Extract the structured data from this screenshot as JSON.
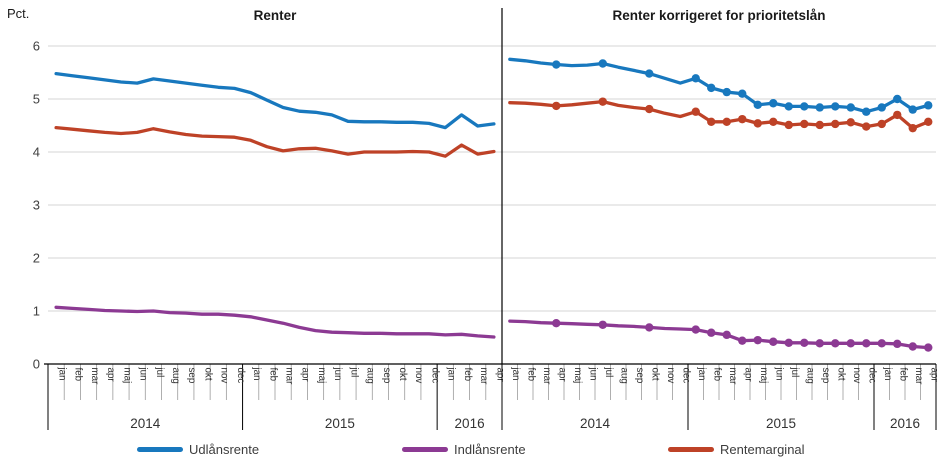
{
  "y_unit_label": "Pct.",
  "legend": [
    {
      "label": "Udlånsrente",
      "color": "#1878BE"
    },
    {
      "label": "Indlånsrente",
      "color": "#8C3A93"
    },
    {
      "label": "Rentemarginal",
      "color": "#BE4227"
    }
  ],
  "axis": {
    "y_ticks": [
      0,
      1,
      2,
      3,
      4,
      5,
      6
    ],
    "gridline_color": "#D6D6D6",
    "axis_color": "#000000",
    "tick_color": "#9B9B9B",
    "label_color": "#404040"
  },
  "chart_data": [
    {
      "type": "line",
      "title": "Renter",
      "ylim": [
        0,
        6
      ],
      "y_tick_step": 1,
      "grid": true,
      "markers": false,
      "x_months": [
        "jan",
        "feb",
        "mar",
        "apr",
        "maj",
        "jun",
        "jul",
        "aug",
        "sep",
        "okt",
        "nov",
        "dec",
        "jan",
        "feb",
        "mar",
        "apr",
        "maj",
        "jun",
        "jul",
        "aug",
        "sep",
        "okt",
        "nov",
        "dec",
        "jan",
        "feb",
        "mar",
        "apr"
      ],
      "year_groups": [
        {
          "label": "2014",
          "months": 12
        },
        {
          "label": "2015",
          "months": 12
        },
        {
          "label": "2016",
          "months": 4
        }
      ],
      "series": [
        {
          "name": "Udlånsrente",
          "color": "#1878BE",
          "values": [
            5.48,
            5.44,
            5.4,
            5.36,
            5.32,
            5.3,
            5.38,
            5.34,
            5.3,
            5.26,
            5.22,
            5.2,
            5.12,
            4.98,
            4.84,
            4.77,
            4.75,
            4.7,
            4.58,
            4.57,
            4.57,
            4.56,
            4.56,
            4.54,
            4.46,
            4.7,
            4.49,
            4.53
          ]
        },
        {
          "name": "Indlånsrente",
          "color": "#8C3A93",
          "values": [
            1.07,
            1.05,
            1.03,
            1.01,
            1.0,
            0.99,
            1.0,
            0.97,
            0.96,
            0.94,
            0.94,
            0.92,
            0.89,
            0.83,
            0.77,
            0.69,
            0.63,
            0.6,
            0.59,
            0.58,
            0.58,
            0.57,
            0.57,
            0.57,
            0.55,
            0.56,
            0.53,
            0.51
          ]
        },
        {
          "name": "Rentemarginal",
          "color": "#BE4227",
          "values": [
            4.46,
            4.43,
            4.4,
            4.37,
            4.35,
            4.37,
            4.44,
            4.38,
            4.33,
            4.3,
            4.29,
            4.28,
            4.22,
            4.1,
            4.02,
            4.06,
            4.07,
            4.02,
            3.96,
            4.0,
            4.0,
            4.0,
            4.01,
            4.0,
            3.92,
            4.13,
            3.96,
            4.01
          ]
        }
      ]
    },
    {
      "type": "line",
      "title": "Renter korrigeret for prioritetslån",
      "ylim": [
        0,
        6
      ],
      "y_tick_step": 1,
      "grid": true,
      "markers": true,
      "marker_month_indices": [
        3,
        6,
        9,
        12,
        13,
        14,
        15,
        16,
        17,
        18,
        19,
        20,
        21,
        22,
        23,
        24,
        25,
        26,
        27
      ],
      "x_months": [
        "jan",
        "feb",
        "mar",
        "apr",
        "maj",
        "jun",
        "jul",
        "aug",
        "sep",
        "okt",
        "nov",
        "dec",
        "jan",
        "feb",
        "mar",
        "apr",
        "maj",
        "jun",
        "jul",
        "aug",
        "sep",
        "okt",
        "nov",
        "dec",
        "jan",
        "feb",
        "mar",
        "apr"
      ],
      "year_groups": [
        {
          "label": "2014",
          "months": 12
        },
        {
          "label": "2015",
          "months": 12
        },
        {
          "label": "2016",
          "months": 4
        }
      ],
      "series": [
        {
          "name": "Udlånsrente",
          "color": "#1878BE",
          "values": [
            5.75,
            5.72,
            5.68,
            5.65,
            5.63,
            5.64,
            5.67,
            5.6,
            5.54,
            5.48,
            5.39,
            5.3,
            5.39,
            5.21,
            5.13,
            5.1,
            4.89,
            4.92,
            4.86,
            4.86,
            4.84,
            4.86,
            4.84,
            4.76,
            4.84,
            5.0,
            4.8,
            4.88
          ]
        },
        {
          "name": "Indlånsrente",
          "color": "#8C3A93",
          "values": [
            0.81,
            0.8,
            0.78,
            0.77,
            0.76,
            0.75,
            0.74,
            0.72,
            0.71,
            0.69,
            0.67,
            0.66,
            0.65,
            0.59,
            0.55,
            0.44,
            0.45,
            0.42,
            0.4,
            0.4,
            0.39,
            0.39,
            0.39,
            0.39,
            0.39,
            0.38,
            0.33,
            0.31
          ]
        },
        {
          "name": "Rentemarginal",
          "color": "#BE4227",
          "values": [
            4.93,
            4.92,
            4.9,
            4.87,
            4.89,
            4.92,
            4.95,
            4.88,
            4.84,
            4.81,
            4.73,
            4.67,
            4.76,
            4.57,
            4.57,
            4.62,
            4.54,
            4.57,
            4.51,
            4.53,
            4.51,
            4.53,
            4.56,
            4.48,
            4.53,
            4.7,
            4.45,
            4.57
          ]
        }
      ]
    }
  ]
}
